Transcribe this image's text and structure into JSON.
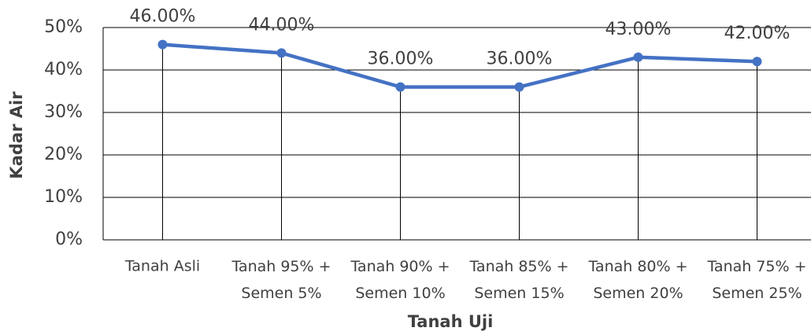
{
  "chart_data": {
    "type": "line",
    "x_label": "Tanah Uji",
    "y_label": "Kadar Air",
    "categories": [
      "Tanah Asli",
      "Tanah 95% + Semen 5%",
      "Tanah 90% + Semen 10%",
      "Tanah 85% + Semen 15%",
      "Tanah 80% + Semen 20%",
      "Tanah 75% + Semen 25%"
    ],
    "series": [
      {
        "name": "Kadar Air",
        "color": "#4472c4",
        "values": [
          46,
          44,
          36,
          36,
          43,
          42
        ],
        "value_labels": [
          "46.00%",
          "44.00%",
          "36.00%",
          "36.00%",
          "43.00%",
          "42.00%"
        ]
      }
    ],
    "ylim": [
      0,
      50
    ],
    "yticks": [
      {
        "value": 0,
        "label": "0%"
      },
      {
        "value": 10,
        "label": "10%"
      },
      {
        "value": 20,
        "label": "20%"
      },
      {
        "value": 30,
        "label": "30%"
      },
      {
        "value": 40,
        "label": "40%"
      },
      {
        "value": 50,
        "label": "50%"
      }
    ],
    "grid": true,
    "drop_lines": true
  }
}
